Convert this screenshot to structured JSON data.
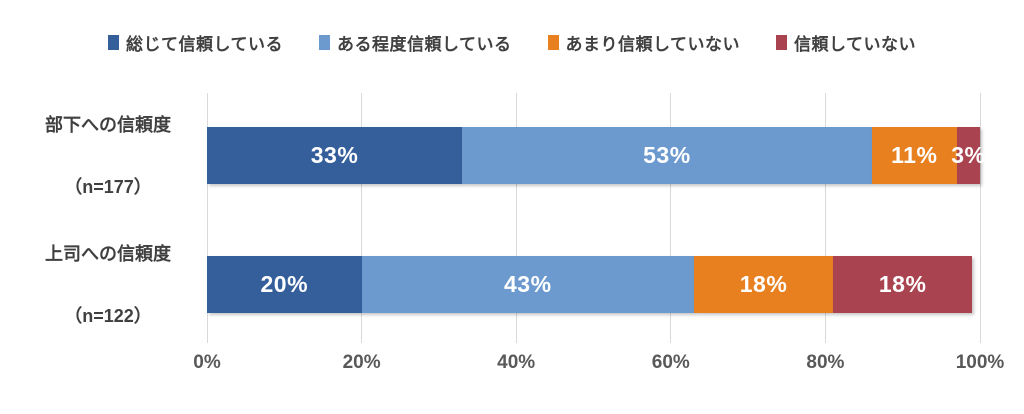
{
  "chart_data": {
    "type": "bar",
    "subtype": "horizontal-stacked-100",
    "title": "",
    "xlabel": "",
    "ylabel": "",
    "xlim": [
      0,
      100
    ],
    "grid": true,
    "legend_position": "top",
    "value_suffix": "%",
    "x_ticks": [
      "0%",
      "20%",
      "40%",
      "60%",
      "80%",
      "100%"
    ],
    "x_tick_values": [
      0,
      20,
      40,
      60,
      80,
      100
    ],
    "categories": [
      {
        "label": "部下への信頼度",
        "sublabel": "（n=177）"
      },
      {
        "label": "上司への信頼度",
        "sublabel": "（n=122）"
      }
    ],
    "series": [
      {
        "name": "総じて信頼している",
        "color": "#355F9B",
        "values": [
          33,
          20
        ]
      },
      {
        "name": "ある程度信頼している",
        "color": "#6C9ACE",
        "values": [
          53,
          43
        ]
      },
      {
        "name": "あまり信頼していない",
        "color": "#E8801F",
        "values": [
          11,
          18
        ]
      },
      {
        "name": "信頼していない",
        "color": "#A94350",
        "values": [
          3,
          18
        ]
      }
    ],
    "data_labels": [
      [
        "33%",
        "53%",
        "11%",
        "3%"
      ],
      [
        "20%",
        "43%",
        "18%",
        "18%"
      ]
    ]
  },
  "colors": {
    "gridline": "#d9d9d9",
    "legend_text": "#404040",
    "category_text": "#404040",
    "axis_text": "#595959",
    "data_label_text": "#ffffff",
    "background": "#ffffff"
  }
}
